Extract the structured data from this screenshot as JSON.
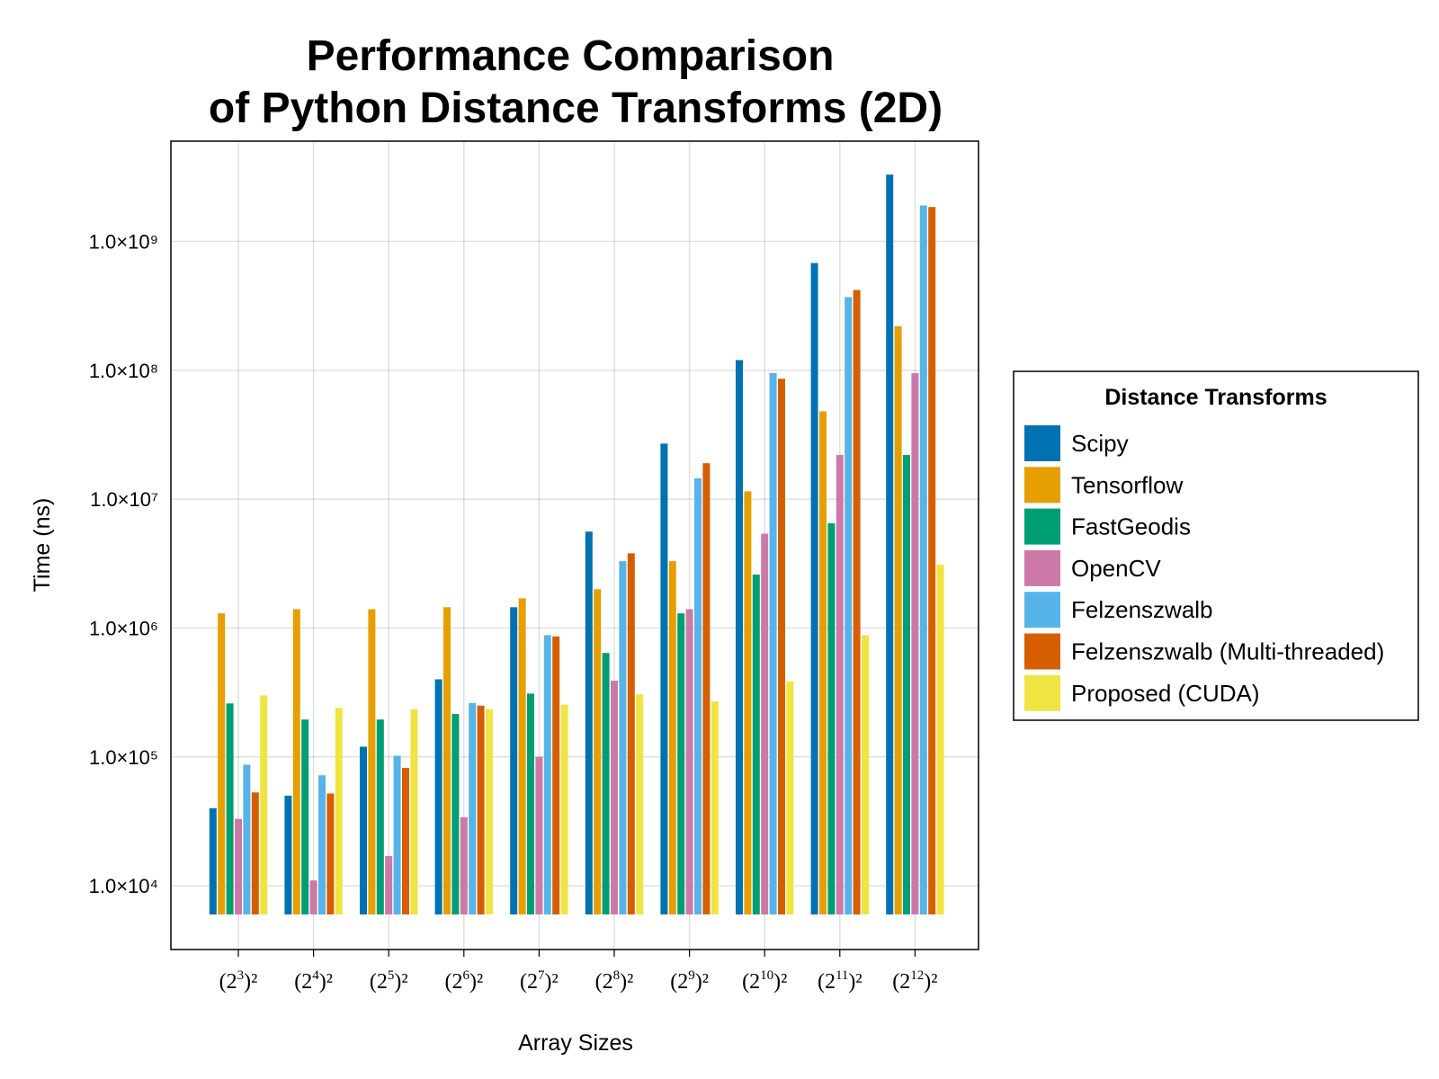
{
  "chart_data": {
    "type": "bar",
    "title": [
      "Performance Comparison",
      "of Python Distance Transforms (2D)"
    ],
    "xlabel": "Array Sizes",
    "ylabel": "Time (ns)",
    "yscale": "log",
    "ylim": [
      3200,
      6000000000
    ],
    "grid": true,
    "legend_position": "right",
    "legend_title": "Distance Transforms",
    "categories": [
      {
        "base": "(2",
        "exp": "3",
        "tail": ")²"
      },
      {
        "base": "(2",
        "exp": "4",
        "tail": ")²"
      },
      {
        "base": "(2",
        "exp": "5",
        "tail": ")²"
      },
      {
        "base": "(2",
        "exp": "6",
        "tail": ")²"
      },
      {
        "base": "(2",
        "exp": "7",
        "tail": ")²"
      },
      {
        "base": "(2",
        "exp": "8",
        "tail": ")²"
      },
      {
        "base": "(2",
        "exp": "9",
        "tail": ")²"
      },
      {
        "base": "(2",
        "exp": "10",
        "tail": ")²"
      },
      {
        "base": "(2",
        "exp": "11",
        "tail": ")²"
      },
      {
        "base": "(2",
        "exp": "12",
        "tail": ")²"
      }
    ],
    "yticks": [
      {
        "value": 10000,
        "label": "1.0×10⁴"
      },
      {
        "value": 100000,
        "label": "1.0×10⁵"
      },
      {
        "value": 1000000,
        "label": "1.0×10⁶"
      },
      {
        "value": 10000000,
        "label": "1.0×10⁷"
      },
      {
        "value": 100000000,
        "label": "1.0×10⁸"
      },
      {
        "value": 1000000000,
        "label": "1.0×10⁹"
      }
    ],
    "series": [
      {
        "name": "Scipy",
        "color": "#0072B2",
        "values": [
          40000,
          50000,
          120000,
          400000,
          1450000,
          5600000,
          27000000,
          120000000,
          680000000,
          3300000000
        ]
      },
      {
        "name": "Tensorflow",
        "color": "#E69F00",
        "values": [
          1300000,
          1400000,
          1400000,
          1450000,
          1700000,
          2000000,
          3300000,
          11500000,
          48000000,
          220000000
        ]
      },
      {
        "name": "FastGeodis",
        "color": "#009E73",
        "values": [
          260000,
          195000,
          195000,
          215000,
          310000,
          640000,
          1300000,
          2600000,
          6500000,
          22000000
        ]
      },
      {
        "name": "OpenCV",
        "color": "#CC79A7",
        "values": [
          33000,
          11000,
          17000,
          34000,
          100000,
          390000,
          1400000,
          5400000,
          22000000,
          95000000
        ]
      },
      {
        "name": "Felzenszwalb",
        "color": "#56B4E9",
        "values": [
          87000,
          72000,
          102000,
          262000,
          880000,
          3300000,
          14500000,
          95000000,
          370000000,
          1900000000
        ]
      },
      {
        "name": "Felzenszwalb (Multi-threaded)",
        "color": "#D55E00",
        "values": [
          53000,
          52000,
          82000,
          250000,
          860000,
          3800000,
          19000000,
          86000000,
          420000000,
          1850000000
        ]
      },
      {
        "name": "Proposed (CUDA)",
        "color": "#F0E442",
        "values": [
          300000,
          240000,
          235000,
          235000,
          255000,
          305000,
          270000,
          385000,
          880000,
          3100000
        ]
      }
    ]
  }
}
